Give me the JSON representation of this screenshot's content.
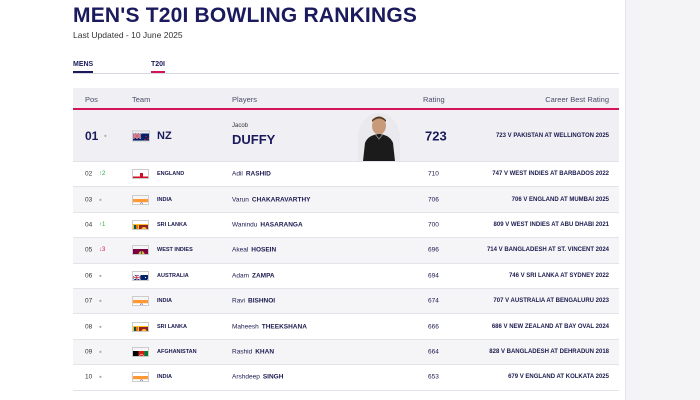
{
  "page": {
    "title": "MEN'S T20I BOWLING RANKINGS",
    "last_updated": "Last Updated - 10 June 2025"
  },
  "tabs": [
    {
      "label": "MENS",
      "active": true
    },
    {
      "label": "T20I",
      "active": true
    }
  ],
  "table": {
    "headers": {
      "pos": "Pos",
      "team": "Team",
      "players": "Players",
      "rating": "Rating",
      "best": "Career Best Rating"
    },
    "top": {
      "pos": "01",
      "movement": "•",
      "team": "NZ",
      "first": "Jacob",
      "last": "DUFFY",
      "rating": "723",
      "best": "723 V PAKISTAN AT WELLINGTON 2025",
      "flag": "nz-flag"
    },
    "rows": [
      {
        "pos": "02",
        "movement": "^2",
        "move_type": "up",
        "team": "ENGLAND",
        "first": "Adil",
        "last": "RASHID",
        "rating": "710",
        "best": "747 V WEST INDIES AT BARBADOS 2022",
        "flag": "england-flag"
      },
      {
        "pos": "03",
        "movement": "•",
        "move_type": "none",
        "team": "INDIA",
        "first": "Varun",
        "last": "CHAKARAVARTHY",
        "rating": "706",
        "best": "706 V ENGLAND AT MUMBAI 2025",
        "flag": "india-flag"
      },
      {
        "pos": "04",
        "movement": "^1",
        "move_type": "up",
        "team": "SRI LANKA",
        "first": "Wanindu",
        "last": "HASARANGA",
        "rating": "700",
        "best": "809 V WEST INDIES AT ABU DHABI 2021",
        "flag": "sri-lanka-flag"
      },
      {
        "pos": "05",
        "movement": "v3",
        "move_type": "down",
        "team": "WEST INDIES",
        "first": "Akeal",
        "last": "HOSEIN",
        "rating": "696",
        "best": "714 V BANGLADESH AT ST. VINCENT 2024",
        "flag": "west-indies-flag"
      },
      {
        "pos": "06",
        "movement": "•",
        "move_type": "none",
        "team": "AUSTRALIA",
        "first": "Adam",
        "last": "ZAMPA",
        "rating": "694",
        "best": "746 V SRI LANKA AT SYDNEY 2022",
        "flag": "australia-flag"
      },
      {
        "pos": "07",
        "movement": "•",
        "move_type": "none",
        "team": "INDIA",
        "first": "Ravi",
        "last": "BISHNOI",
        "rating": "674",
        "best": "707 V AUSTRALIA AT BENGALURU 2023",
        "flag": "india-flag"
      },
      {
        "pos": "08",
        "movement": "•",
        "move_type": "none",
        "team": "SRI LANKA",
        "first": "Maheesh",
        "last": "THEEKSHANA",
        "rating": "666",
        "best": "686 V NEW ZEALAND AT BAY OVAL 2024",
        "flag": "sri-lanka-flag"
      },
      {
        "pos": "09",
        "movement": "•",
        "move_type": "none",
        "team": "AFGHANISTAN",
        "first": "Rashid",
        "last": "KHAN",
        "rating": "664",
        "best": "828 V BANGLADESH AT DEHRADUN 2018",
        "flag": "afghanistan-flag"
      },
      {
        "pos": "10",
        "movement": "•",
        "move_type": "none",
        "team": "INDIA",
        "first": "Arshdeep",
        "last": "SINGH",
        "rating": "653",
        "best": "679 V ENGLAND AT KOLKATA 2025",
        "flag": "india-flag"
      }
    ]
  },
  "colors": {
    "brand_navy": "#1a1a5c",
    "accent_pink": "#d4145a",
    "up_green": "#2aa84a"
  }
}
